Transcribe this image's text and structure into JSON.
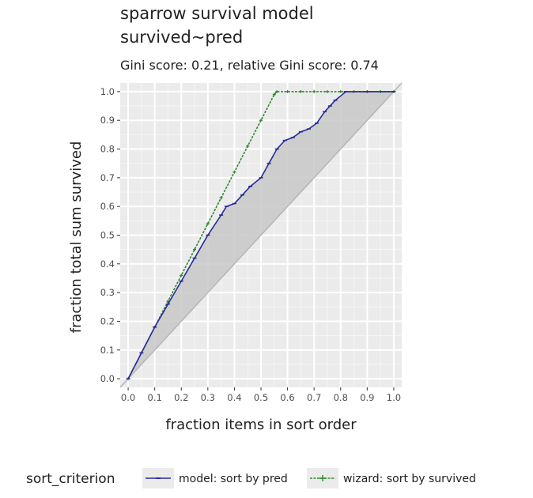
{
  "chart_data": {
    "type": "line",
    "title": "sparrow survival model",
    "title_line2": "survived~pred",
    "subtitle": "Gini score: 0.21, relative Gini score: 0.74",
    "xlabel": "fraction items in sort order",
    "ylabel": "fraction total sum survived",
    "xlim": [
      -0.03,
      1.03
    ],
    "ylim": [
      -0.03,
      1.03
    ],
    "x_ticks": [
      "0.0",
      "0.1",
      "0.2",
      "0.3",
      "0.4",
      "0.5",
      "0.6",
      "0.7",
      "0.8",
      "0.9",
      "1.0"
    ],
    "y_ticks": [
      "0.0",
      "0.1",
      "0.2",
      "0.3",
      "0.4",
      "0.5",
      "0.6",
      "0.7",
      "0.8",
      "0.9",
      "1.0"
    ],
    "grid": true,
    "legend_position": "bottom",
    "legend_title": "sort_criterion",
    "diagonal": true,
    "series": [
      {
        "name": "model: sort by pred",
        "color": "#2a2a9a",
        "marker": "dash",
        "x": [
          0.0,
          0.05,
          0.1,
          0.15,
          0.2,
          0.25,
          0.3,
          0.35,
          0.37,
          0.4,
          0.43,
          0.46,
          0.5,
          0.53,
          0.56,
          0.59,
          0.62,
          0.65,
          0.68,
          0.71,
          0.74,
          0.76,
          0.78,
          0.82,
          0.9,
          1.0
        ],
        "y": [
          0.0,
          0.09,
          0.18,
          0.26,
          0.34,
          0.42,
          0.5,
          0.57,
          0.6,
          0.61,
          0.64,
          0.67,
          0.7,
          0.75,
          0.8,
          0.83,
          0.84,
          0.86,
          0.87,
          0.89,
          0.93,
          0.95,
          0.97,
          1.0,
          1.0,
          1.0
        ]
      },
      {
        "name": "wizard: sort by survived",
        "color": "#2e8b2e",
        "marker": "plus",
        "x": [
          0.0,
          0.05,
          0.1,
          0.15,
          0.2,
          0.25,
          0.3,
          0.35,
          0.4,
          0.45,
          0.5,
          0.55,
          0.56,
          0.6,
          0.65,
          0.7,
          0.75,
          0.8,
          0.85,
          0.9,
          0.95,
          1.0
        ],
        "y": [
          0.0,
          0.09,
          0.18,
          0.27,
          0.36,
          0.45,
          0.54,
          0.63,
          0.72,
          0.81,
          0.9,
          0.99,
          1.0,
          1.0,
          1.0,
          1.0,
          1.0,
          1.0,
          1.0,
          1.0,
          1.0,
          1.0
        ]
      }
    ]
  }
}
